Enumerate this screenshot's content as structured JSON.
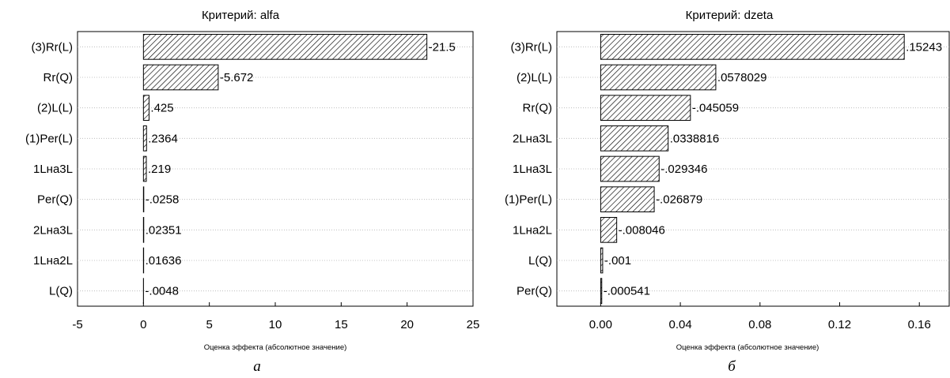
{
  "chart_data": [
    {
      "type": "bar",
      "orientation": "horizontal",
      "title": "Критерий: alfa",
      "xlabel": "Оценка эффекта (абсолютное значение)",
      "caption": "а",
      "categories": [
        "(3)Rr(L)",
        "Rr(Q)",
        "(2)L(L)",
        "(1)Per(L)",
        "1Lна3L",
        "Per(Q)",
        "2Lна3L",
        "1Lна2L",
        "L(Q)"
      ],
      "values": [
        21.5,
        5.672,
        0.425,
        0.2364,
        0.219,
        0.0258,
        0.02351,
        0.01636,
        0.0048
      ],
      "value_labels": [
        "-21.5",
        "-5.672",
        ".425",
        ".2364",
        ".219",
        "-.0258",
        ".02351",
        ".01636",
        "-.0048"
      ],
      "xlim": [
        -5,
        25
      ],
      "xticks": [
        -5,
        0,
        5,
        10,
        15,
        20,
        25
      ],
      "xtick_labels": [
        "-5",
        "0",
        "5",
        "10",
        "15",
        "20",
        "25"
      ],
      "grid": true,
      "bar_fill": "hatched"
    },
    {
      "type": "bar",
      "orientation": "horizontal",
      "title": "Критерий: dzeta",
      "xlabel": "Оценка эффекта (абсолютное значение)",
      "caption": "б",
      "categories": [
        "(3)Rr(L)",
        "(2)L(L)",
        "Rr(Q)",
        "2Lна3L",
        "1Lна3L",
        "(1)Per(L)",
        "1Lна2L",
        "L(Q)",
        "Per(Q)"
      ],
      "values": [
        0.15243,
        0.0578029,
        0.045059,
        0.0338816,
        0.029346,
        0.026879,
        0.008046,
        0.001,
        0.000541
      ],
      "value_labels": [
        ".15243",
        ".0578029",
        "-.045059",
        ".0338816",
        "-.029346",
        "-.026879",
        "-.008046",
        "-.001",
        "-.000541"
      ],
      "xlim": [
        -0.022,
        0.175
      ],
      "xticks": [
        0.0,
        0.04,
        0.08,
        0.12,
        0.16
      ],
      "xtick_labels": [
        "0.00",
        "0.04",
        "0.08",
        "0.12",
        "0.16"
      ],
      "grid": true,
      "bar_fill": "hatched"
    }
  ]
}
